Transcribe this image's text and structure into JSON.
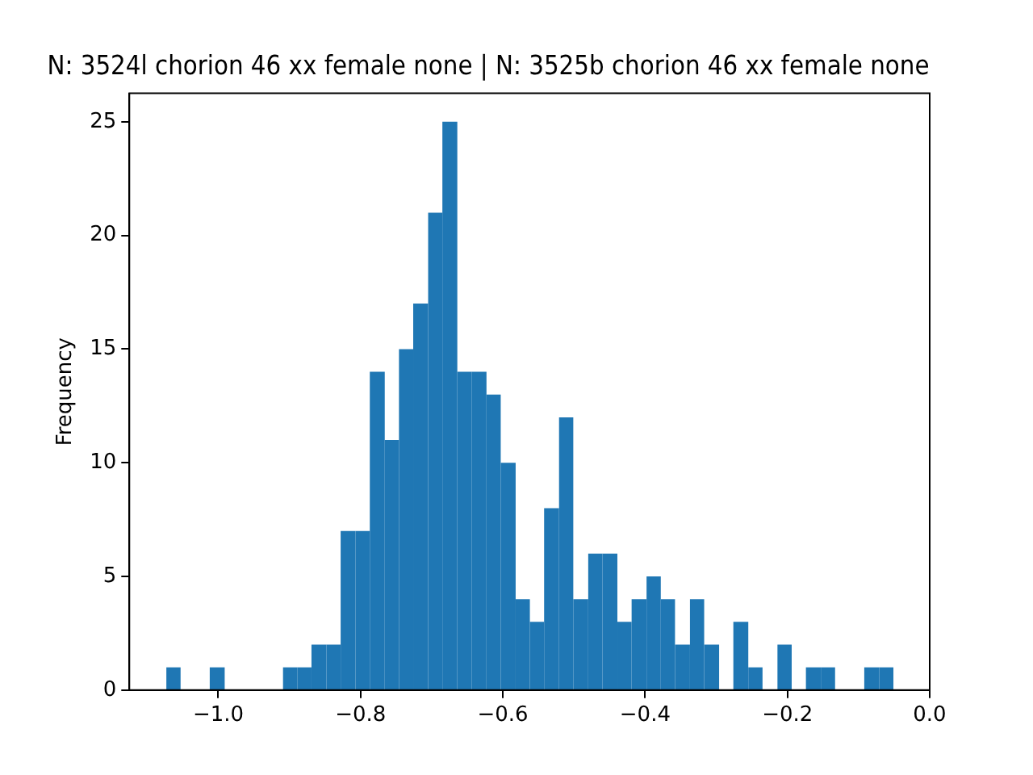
{
  "chart_data": {
    "type": "histogram",
    "title": "N: 3524l chorion 46 xx female none | N: 3525b chorion 46 xx female none",
    "ylabel": "Frequency",
    "color": "#1f77b4",
    "bins": [
      -1.073,
      -1.053,
      -1.012,
      -0.991,
      -0.909,
      -0.889,
      -0.869,
      -0.848,
      -0.828,
      -0.807,
      -0.787,
      -0.766,
      -0.746,
      -0.726,
      -0.705,
      -0.685,
      -0.664,
      -0.644,
      -0.623,
      -0.603,
      -0.582,
      -0.562,
      -0.542,
      -0.521,
      -0.501,
      -0.48,
      -0.46,
      -0.439,
      -0.419,
      -0.398,
      -0.378,
      -0.358,
      -0.337,
      -0.317,
      -0.296,
      -0.276,
      -0.255,
      -0.235,
      -0.214,
      -0.194,
      -0.174,
      -0.153,
      -0.133,
      -0.092,
      -0.071,
      -0.051
    ],
    "values": [
      1,
      0,
      1,
      0,
      1,
      1,
      2,
      2,
      7,
      7,
      14,
      11,
      15,
      17,
      21,
      25,
      14,
      14,
      13,
      10,
      4,
      3,
      8,
      12,
      4,
      6,
      6,
      3,
      4,
      5,
      4,
      2,
      4,
      2,
      0,
      3,
      1,
      0,
      2,
      0,
      1,
      1,
      0,
      1,
      1
    ],
    "xlim": [
      -1.125,
      0
    ],
    "xticks": [
      {
        "value": -1,
        "label": "−1.0"
      },
      {
        "value": -0.8,
        "label": "−0.8"
      },
      {
        "value": -0.6,
        "label": "−0.6"
      },
      {
        "value": -0.4,
        "label": "−0.4"
      },
      {
        "value": -0.2,
        "label": "−0.2"
      },
      {
        "value": 0,
        "label": "0.0"
      }
    ],
    "ylim": [
      0,
      26.25
    ],
    "yticks": [
      0,
      5,
      10,
      15,
      20,
      25
    ],
    "grid": false,
    "legend": false
  }
}
